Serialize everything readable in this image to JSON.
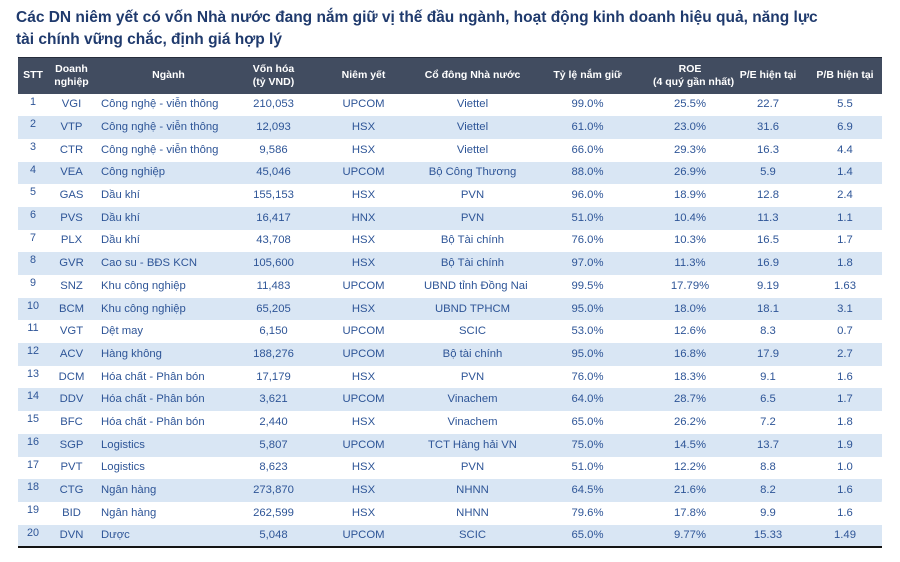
{
  "title": {
    "line1": "Các DN niêm yết có vốn Nhà nước đang nắm giữ vị thế đầu ngành, hoạt động kinh doanh hiệu quả, năng lực",
    "line2": "tài chính vững chắc, định giá hợp lý"
  },
  "colors": {
    "title_text": "#1f3a6d",
    "header_background": "#414c60",
    "header_text": "#ffffff",
    "body_text": "#2e5597",
    "stripe_row": "#d9e6f4",
    "bottom_border": "#141414"
  },
  "table": {
    "columns": [
      {
        "key": "stt",
        "label": "STT",
        "lines": [
          "STT"
        ]
      },
      {
        "key": "ticker",
        "label": "Doanh nghiệp",
        "lines": [
          "Doanh",
          "nghiệp"
        ]
      },
      {
        "key": "industry",
        "label": "Ngành",
        "lines": [
          "Ngành"
        ]
      },
      {
        "key": "market_cap",
        "label": "Vốn hóa (tỷ VND)",
        "lines": [
          "Vốn hóa",
          "(tỷ VND)"
        ]
      },
      {
        "key": "exchange",
        "label": "Niêm yết",
        "lines": [
          "Niêm yết"
        ]
      },
      {
        "key": "shareholder",
        "label": "Cổ đông Nhà nước",
        "lines": [
          "Cổ đông Nhà nước"
        ]
      },
      {
        "key": "ownership",
        "label": "Tỷ lệ nắm giữ",
        "lines": [
          "Tỷ lệ nắm giữ"
        ]
      },
      {
        "key": "roe",
        "label": "ROE (4 quý gần nhất)",
        "lines": [
          "ROE",
          "(4 quý gần nhất)"
        ]
      },
      {
        "key": "pe",
        "label": "P/E hiện tại",
        "lines": [
          "P/E hiện tại"
        ]
      },
      {
        "key": "pb",
        "label": "P/B hiện tại",
        "lines": [
          "P/B hiện tại"
        ]
      }
    ],
    "rows": [
      [
        "1",
        "VGI",
        "Công nghệ - viễn thông",
        "210,053",
        "UPCOM",
        "Viettel",
        "99.0%",
        "25.5%",
        "22.7",
        "5.5"
      ],
      [
        "2",
        "VTP",
        "Công nghệ - viễn thông",
        "12,093",
        "HSX",
        "Viettel",
        "61.0%",
        "23.0%",
        "31.6",
        "6.9"
      ],
      [
        "3",
        "CTR",
        "Công nghệ - viễn thông",
        "9,586",
        "HSX",
        "Viettel",
        "66.0%",
        "29.3%",
        "16.3",
        "4.4"
      ],
      [
        "4",
        "VEA",
        "Công nghiệp",
        "45,046",
        "UPCOM",
        "Bộ Công Thương",
        "88.0%",
        "26.9%",
        "5.9",
        "1.4"
      ],
      [
        "5",
        "GAS",
        "Dầu khí",
        "155,153",
        "HSX",
        "PVN",
        "96.0%",
        "18.9%",
        "12.8",
        "2.4"
      ],
      [
        "6",
        "PVS",
        "Dầu khí",
        "16,417",
        "HNX",
        "PVN",
        "51.0%",
        "10.4%",
        "11.3",
        "1.1"
      ],
      [
        "7",
        "PLX",
        "Dầu khí",
        "43,708",
        "HSX",
        "Bộ Tài chính",
        "76.0%",
        "10.3%",
        "16.5",
        "1.7"
      ],
      [
        "8",
        "GVR",
        "Cao su - BĐS KCN",
        "105,600",
        "HSX",
        "Bộ Tài chính",
        "97.0%",
        "11.3%",
        "16.9",
        "1.8"
      ],
      [
        "9",
        "SNZ",
        "Khu công nghiệp",
        "11,483",
        "UPCOM",
        "UBND tỉnh Đồng Nai",
        "99.5%",
        "17.79%",
        "9.19",
        "1.63"
      ],
      [
        "10",
        "BCM",
        "Khu công nghiệp",
        "65,205",
        "HSX",
        "UBND TPHCM",
        "95.0%",
        "18.0%",
        "18.1",
        "3.1"
      ],
      [
        "11",
        "VGT",
        "Dệt may",
        "6,150",
        "UPCOM",
        "SCIC",
        "53.0%",
        "12.6%",
        "8.3",
        "0.7"
      ],
      [
        "12",
        "ACV",
        "Hàng không",
        "188,276",
        "UPCOM",
        "Bộ tài chính",
        "95.0%",
        "16.8%",
        "17.9",
        "2.7"
      ],
      [
        "13",
        "DCM",
        "Hóa chất - Phân bón",
        "17,179",
        "HSX",
        "PVN",
        "76.0%",
        "18.3%",
        "9.1",
        "1.6"
      ],
      [
        "14",
        "DDV",
        "Hóa chất - Phân bón",
        "3,621",
        "UPCOM",
        "Vinachem",
        "64.0%",
        "28.7%",
        "6.5",
        "1.7"
      ],
      [
        "15",
        "BFC",
        "Hóa chất - Phân bón",
        "2,440",
        "HSX",
        "Vinachem",
        "65.0%",
        "26.2%",
        "7.2",
        "1.8"
      ],
      [
        "16",
        "SGP",
        "Logistics",
        "5,807",
        "UPCOM",
        "TCT Hàng hải VN",
        "75.0%",
        "14.5%",
        "13.7",
        "1.9"
      ],
      [
        "17",
        "PVT",
        "Logistics",
        "8,623",
        "HSX",
        "PVN",
        "51.0%",
        "12.2%",
        "8.8",
        "1.0"
      ],
      [
        "18",
        "CTG",
        "Ngân hàng",
        "273,870",
        "HSX",
        "NHNN",
        "64.5%",
        "21.6%",
        "8.2",
        "1.6"
      ],
      [
        "19",
        "BID",
        "Ngân hàng",
        "262,599",
        "HSX",
        "NHNN",
        "79.6%",
        "17.8%",
        "9.9",
        "1.6"
      ],
      [
        "20",
        "DVN",
        "Dược",
        "5,048",
        "UPCOM",
        "SCIC",
        "65.0%",
        "9.77%",
        "15.33",
        "1.49"
      ]
    ]
  }
}
